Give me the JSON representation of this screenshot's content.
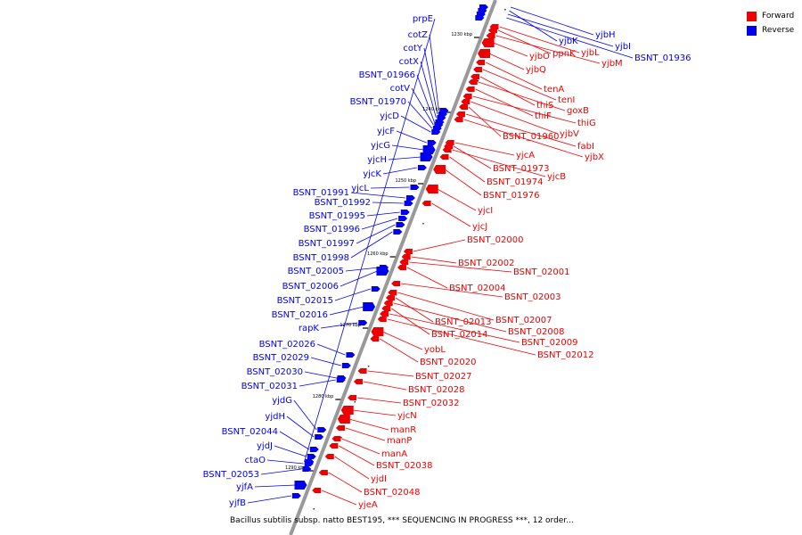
{
  "legend": {
    "forward": {
      "label": "Forward",
      "color": "#ee0000"
    },
    "reverse": {
      "label": "Reverse",
      "color": "#0000ee"
    }
  },
  "caption": "Bacillus subtilis subsp. natto BEST195, *** SEQUENCING IN PROGRESS ***, 12 order...",
  "axis": {
    "ticks": [
      "1230 kbp",
      "1240 kbp",
      "1250 kbp",
      "1260 kbp",
      "1270 kbp",
      "1280 kbp",
      "1290 kbp"
    ]
  },
  "reverse_genes": [
    "prpE",
    "cotZ",
    "cotY",
    "cotX",
    "BSNT_01966",
    "cotV",
    "BSNT_01970",
    "yjcD",
    "yjcF",
    "yjcG",
    "yjcH",
    "yjcK",
    "yjcL",
    "BSNT_01991",
    "BSNT_01992",
    "BSNT_01995",
    "BSNT_01996",
    "BSNT_01997",
    "BSNT_01998",
    "BSNT_02005",
    "BSNT_02006",
    "BSNT_02015",
    "BSNT_02016",
    "rapK",
    "BSNT_02026",
    "BSNT_02029",
    "BSNT_02030",
    "BSNT_02031",
    "yjdG",
    "yjdH",
    "BSNT_02044",
    "yjdJ",
    "ctaO",
    "BSNT_02053",
    "yjfA",
    "yjfB"
  ],
  "reverse_genes_right": [
    "yjbH",
    "yjbK",
    "yjbI",
    "BSNT_01936"
  ],
  "forward_genes": [
    "yjbL",
    "ppnK",
    "yjbM",
    "yjbO",
    "yjbQ",
    "tenA",
    "tenI",
    "thiS",
    "goxB",
    "thiF",
    "thiG",
    "yjbV",
    "BSNT_01960",
    "fabI",
    "yjbX",
    "yjcA",
    "BSNT_01973",
    "yjcB",
    "BSNT_01974",
    "BSNT_01976",
    "yjcI",
    "yjcJ",
    "BSNT_02000",
    "BSNT_02002",
    "BSNT_02001",
    "BSNT_02004",
    "BSNT_02003",
    "BSNT_02007",
    "BSNT_02013",
    "BSNT_02008",
    "BSNT_02014",
    "BSNT_02009",
    "yobL",
    "BSNT_02012",
    "BSNT_02020",
    "BSNT_02027",
    "BSNT_02028",
    "BSNT_02032",
    "yjcN",
    "manR",
    "manP",
    "manA",
    "BSNT_02038",
    "yjdI",
    "BSNT_02048",
    "yjeA"
  ]
}
